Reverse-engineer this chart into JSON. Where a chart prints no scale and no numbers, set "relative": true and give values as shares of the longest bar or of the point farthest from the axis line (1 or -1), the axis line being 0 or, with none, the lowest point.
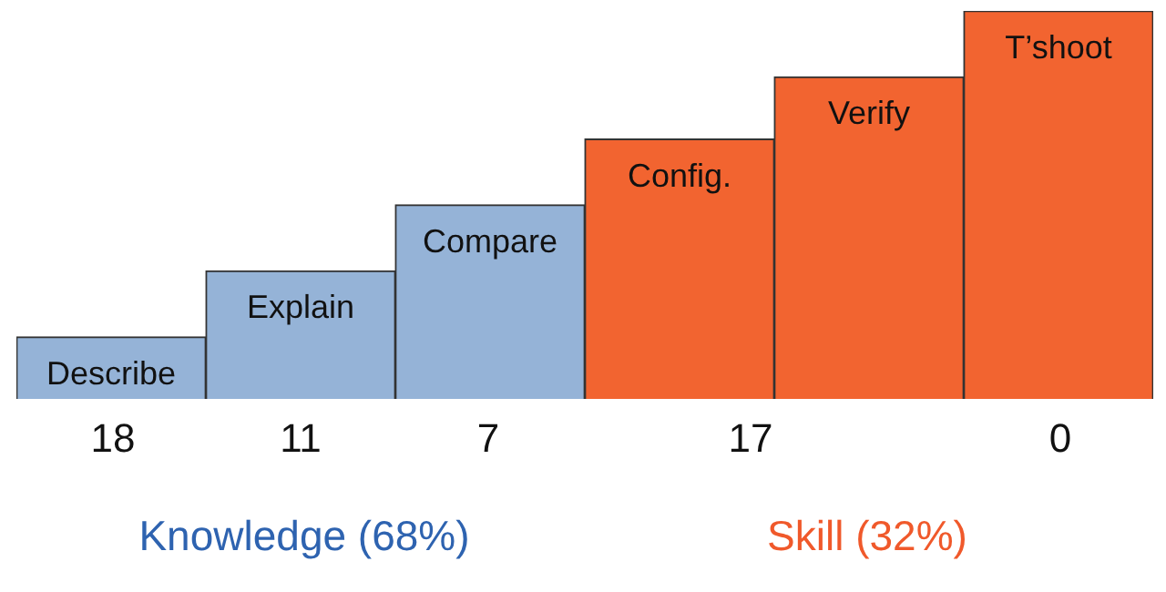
{
  "chart_data": {
    "type": "bar",
    "relative": true,
    "categories": [
      "Describe",
      "Explain",
      "Compare",
      "Config.",
      "Verify",
      "T’shoot"
    ],
    "values": [
      0.16,
      0.33,
      0.5,
      0.67,
      0.83,
      1
    ],
    "colors": [
      "#95b3d7",
      "#95b3d7",
      "#95b3d7",
      "#f26430",
      "#f26430",
      "#f26430"
    ],
    "annotations": [
      "18",
      "11",
      "7",
      "17",
      "0",
      "Knowledge (68%)",
      "Skill (32%)"
    ]
  }
}
